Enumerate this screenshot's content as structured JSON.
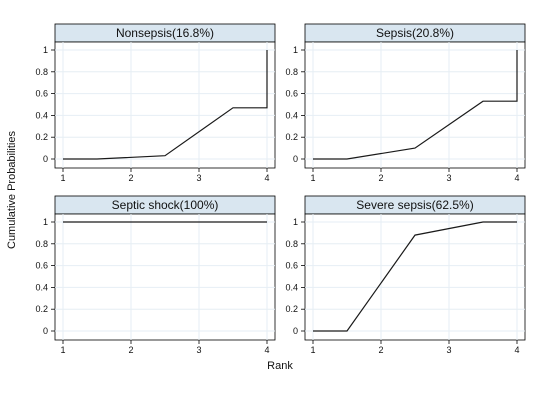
{
  "chart_data": {
    "type": "line",
    "xlabel": "Rank",
    "ylabel": "Cumulative Probabilities",
    "x_ticks": [
      1,
      2,
      3,
      4
    ],
    "y_ticks": [
      0,
      0.2,
      0.4,
      0.6,
      0.8,
      1
    ],
    "x_tick_labels": [
      "1",
      "2",
      "3",
      "4"
    ],
    "y_tick_labels": [
      "0",
      "0.2",
      "0.4",
      "0.6",
      "0.8",
      "1"
    ],
    "xlim": [
      1,
      4
    ],
    "ylim": [
      0,
      1
    ],
    "grid": true,
    "panels": [
      {
        "title": "Nonsepsis(16.8%)",
        "x": [
          1,
          1.5,
          2.5,
          3.5,
          4,
          4
        ],
        "y": [
          0,
          0,
          0.03,
          0.47,
          0.47,
          1
        ]
      },
      {
        "title": "Sepsis(20.8%)",
        "x": [
          1,
          1.5,
          2.5,
          3.5,
          4,
          4
        ],
        "y": [
          0,
          0,
          0.1,
          0.53,
          0.53,
          1
        ]
      },
      {
        "title": "Septic shock(100%)",
        "x": [
          1,
          4
        ],
        "y": [
          1,
          1
        ]
      },
      {
        "title": "Severe sepsis(62.5%)",
        "x": [
          1,
          1.5,
          2.5,
          3.5,
          4
        ],
        "y": [
          0,
          0,
          0.88,
          1,
          1
        ]
      }
    ]
  },
  "colors": {
    "strip": "#d9e6f0",
    "border": "#000000",
    "grid": "#e6eef4",
    "line": "#1a1a1a"
  }
}
